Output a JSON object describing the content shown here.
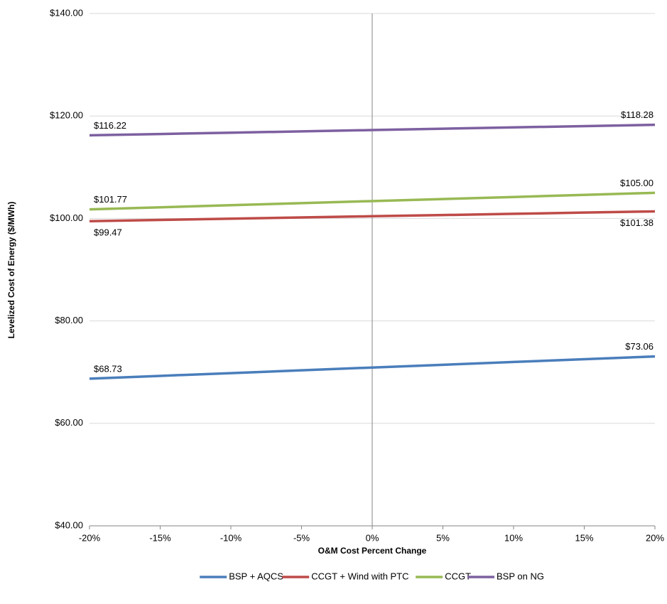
{
  "chart_data": {
    "type": "line",
    "x_label": "O&M Cost Percent Change",
    "y_label": "Levelized Cost of Energy ($/MWh)",
    "categories": [
      "-20%",
      "-15%",
      "-10%",
      "-5%",
      "0%",
      "5%",
      "10%",
      "15%",
      "20%"
    ],
    "ylim": [
      40,
      140
    ],
    "yticks": [
      {
        "value": 40,
        "label": "$40.00"
      },
      {
        "value": 60,
        "label": "$60.00"
      },
      {
        "value": 80,
        "label": "$80.00"
      },
      {
        "value": 100,
        "label": "$100.00"
      },
      {
        "value": 120,
        "label": "$120.00"
      },
      {
        "value": 140,
        "label": "$140.00"
      }
    ],
    "grid": true,
    "legend": "bottom",
    "series": [
      {
        "name": "BSP + AQCS",
        "color": "#4a7ebb",
        "values": [
          68.73,
          69.27,
          69.81,
          70.35,
          70.9,
          71.44,
          71.98,
          72.52,
          73.06
        ],
        "value_labels": [
          "$68.73",
          null,
          null,
          null,
          null,
          null,
          null,
          null,
          "$73.06"
        ]
      },
      {
        "name": "CCGT + Wind with PTC",
        "color": "#be4b48",
        "values": [
          99.47,
          99.71,
          99.95,
          100.19,
          100.43,
          100.66,
          100.9,
          101.14,
          101.38
        ],
        "value_labels": [
          "$99.47",
          null,
          null,
          null,
          null,
          null,
          null,
          null,
          "$101.38"
        ]
      },
      {
        "name": "CCGT",
        "color": "#98b954",
        "values": [
          101.77,
          102.17,
          102.58,
          102.98,
          103.39,
          103.79,
          104.19,
          104.6,
          105.0
        ],
        "value_labels": [
          "$101.77",
          null,
          null,
          null,
          null,
          null,
          null,
          null,
          "$105.00"
        ]
      },
      {
        "name": "BSP on NG",
        "color": "#7d60a0",
        "values": [
          116.22,
          116.48,
          116.74,
          116.99,
          117.25,
          117.51,
          117.77,
          118.02,
          118.28
        ],
        "value_labels": [
          "$116.22",
          null,
          null,
          null,
          null,
          null,
          null,
          null,
          "$118.28"
        ]
      }
    ]
  }
}
